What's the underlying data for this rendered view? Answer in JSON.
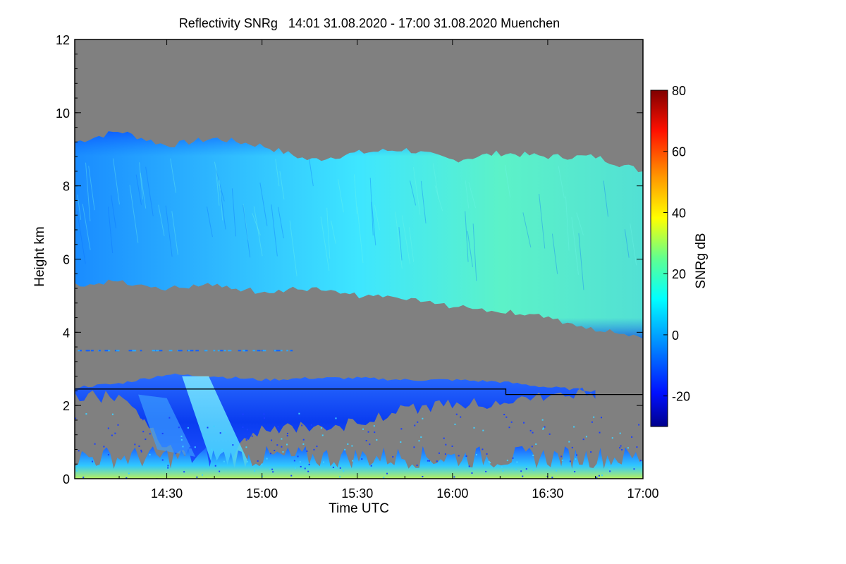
{
  "chart_data": {
    "type": "heatmap",
    "title": "Reflectivity SNRg   14:01 31.08.2020 - 17:00 31.08.2020 Muenchen",
    "xlabel": "Time UTC",
    "ylabel": "Height km",
    "colorbar_label": "SNRg dB",
    "xlim_hours": [
      14.0167,
      17.0
    ],
    "ylim_km": [
      0,
      12
    ],
    "x_ticks": [
      {
        "value": 14.5,
        "label": "14:30"
      },
      {
        "value": 15.0,
        "label": "15:00"
      },
      {
        "value": 15.5,
        "label": "15:30"
      },
      {
        "value": 16.0,
        "label": "16:00"
      },
      {
        "value": 16.5,
        "label": "16:30"
      },
      {
        "value": 17.0,
        "label": "17:00"
      }
    ],
    "y_ticks": [
      {
        "value": 0,
        "label": "0"
      },
      {
        "value": 2,
        "label": "2"
      },
      {
        "value": 4,
        "label": "4"
      },
      {
        "value": 6,
        "label": "6"
      },
      {
        "value": 8,
        "label": "8"
      },
      {
        "value": 10,
        "label": "10"
      },
      {
        "value": 12,
        "label": "12"
      }
    ],
    "colorbar_range_db": [
      -30,
      80
    ],
    "colorbar_ticks": [
      {
        "value": -20,
        "label": "-20"
      },
      {
        "value": 0,
        "label": "0"
      },
      {
        "value": 20,
        "label": "20"
      },
      {
        "value": 40,
        "label": "40"
      },
      {
        "value": 60,
        "label": "60"
      },
      {
        "value": 80,
        "label": "80"
      }
    ],
    "no_signal_color": "#808080",
    "upper_cloud_layer": {
      "times": [
        14.02,
        14.25,
        14.5,
        14.75,
        15.0,
        15.25,
        15.5,
        15.75,
        16.0,
        16.25,
        16.5,
        16.75,
        17.0
      ],
      "top_km": [
        9.2,
        9.5,
        9.1,
        9.3,
        9.1,
        8.7,
        8.9,
        9.0,
        8.7,
        8.9,
        8.8,
        8.8,
        8.4
      ],
      "base_km": [
        5.3,
        5.4,
        5.2,
        5.3,
        5.1,
        5.2,
        5.0,
        4.9,
        4.7,
        4.6,
        4.4,
        4.1,
        3.9
      ],
      "mean_snr_db": [
        2,
        3,
        4,
        5,
        6,
        8,
        11,
        13,
        14,
        16,
        17,
        16,
        14
      ]
    },
    "lower_cloud_layer": {
      "times": [
        14.02,
        14.25,
        14.5,
        14.75,
        15.0,
        15.25,
        15.5,
        15.75,
        16.0,
        16.25,
        16.5,
        16.75
      ],
      "top_km": [
        2.5,
        2.6,
        2.85,
        2.8,
        2.7,
        2.75,
        2.75,
        2.7,
        2.7,
        2.65,
        2.5,
        2.4
      ],
      "base_km": [
        2.3,
        2.2,
        0.9,
        0.2,
        1.4,
        1.4,
        1.5,
        1.9,
        2.0,
        2.1,
        2.3,
        2.35
      ],
      "mean_snr_db": [
        -12,
        -10,
        -4,
        0,
        -6,
        -8,
        -9,
        -10,
        -12,
        -13,
        -15,
        -18
      ]
    },
    "boundary_line": {
      "times": [
        14.02,
        16.28,
        16.28,
        17.0
      ],
      "height_km": [
        2.45,
        2.45,
        2.3,
        2.3
      ]
    },
    "near_ground_clutter_top_km": 0.9
  }
}
